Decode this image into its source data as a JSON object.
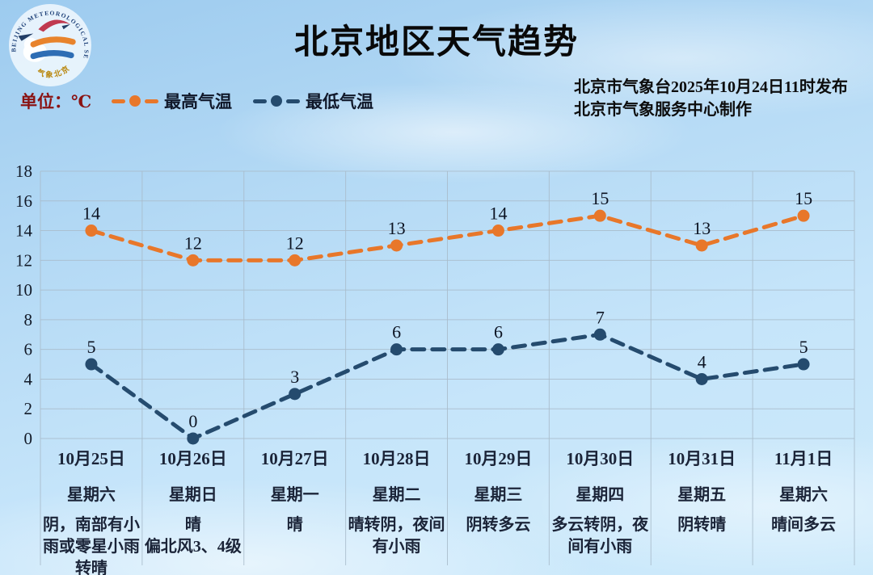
{
  "page": {
    "title": "北京地区天气趋势",
    "unit_label": "单位：℃",
    "publisher": {
      "line1": "北京市气象台2025年10月24日11时发布",
      "line2": "北京市气象服务中心制作"
    }
  },
  "logo": {
    "ring_text": "BEIJING  METEOROLOGICAL  SERVICE",
    "bottom_text": "气象北京"
  },
  "chart_data": {
    "type": "line",
    "title": "北京地区天气趋势",
    "unit": "℃",
    "categories": [
      {
        "date": "10月25日",
        "weekday": "星期六",
        "weather": "阴，南部有小\n雨或零星小雨\n转晴"
      },
      {
        "date": "10月26日",
        "weekday": "星期日",
        "weather": "晴\n偏北风3、4级"
      },
      {
        "date": "10月27日",
        "weekday": "星期一",
        "weather": "晴"
      },
      {
        "date": "10月28日",
        "weekday": "星期二",
        "weather": "晴转阴，夜间\n有小雨"
      },
      {
        "date": "10月29日",
        "weekday": "星期三",
        "weather": "阴转多云"
      },
      {
        "date": "10月30日",
        "weekday": "星期四",
        "weather": "多云转阴，夜\n间有小雨"
      },
      {
        "date": "10月31日",
        "weekday": "星期五",
        "weather": "阴转晴"
      },
      {
        "date": "11月1日",
        "weekday": "星期六",
        "weather": "晴间多云"
      }
    ],
    "series": [
      {
        "name": "最高气温",
        "color": "#e8772a",
        "values": [
          14,
          12,
          12,
          13,
          14,
          15,
          13,
          15
        ]
      },
      {
        "name": "最低气温",
        "color": "#254b6e",
        "values": [
          5,
          0,
          3,
          6,
          6,
          7,
          4,
          5
        ]
      }
    ],
    "ylim": [
      0,
      18
    ],
    "ytick_step": 2,
    "grid": true,
    "grid_color": "#a9bccb",
    "legend_position": "top-left"
  }
}
